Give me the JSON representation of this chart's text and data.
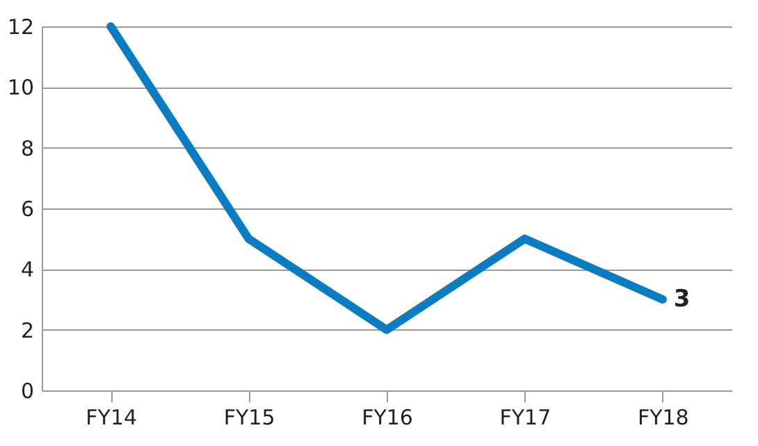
{
  "chart_data": {
    "type": "line",
    "categories": [
      "FY14",
      "FY15",
      "FY16",
      "FY17",
      "FY18"
    ],
    "series": [
      {
        "color": "#0a7dc2",
        "values": [
          12,
          5,
          2,
          5,
          3
        ],
        "value_labels": [
          null,
          null,
          null,
          null,
          "3"
        ]
      }
    ],
    "ylim": [
      0,
      12
    ],
    "yticks": [
      0,
      2,
      4,
      6,
      8,
      10,
      12
    ],
    "grid": "y",
    "marker": "none",
    "line_style": "solid"
  }
}
